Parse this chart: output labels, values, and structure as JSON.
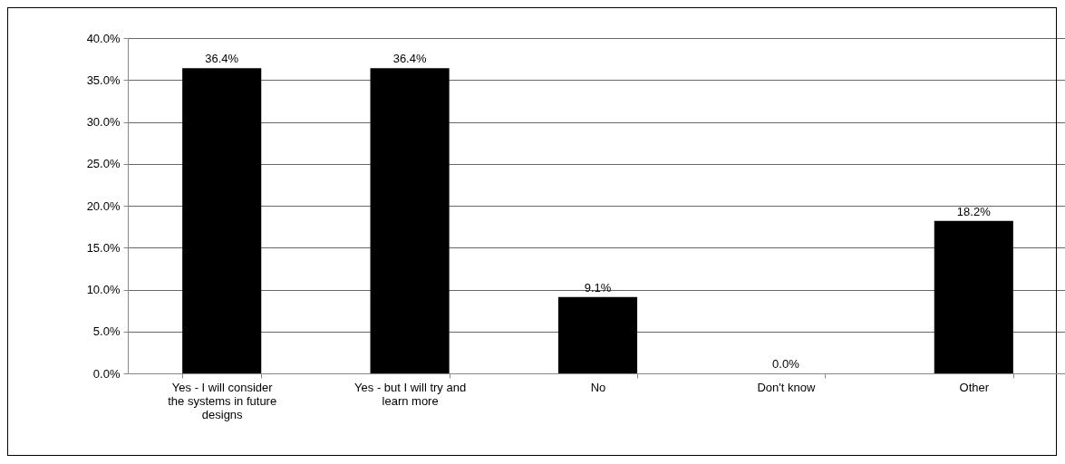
{
  "chart_data": {
    "type": "bar",
    "categories": [
      "Yes - I will consider the systems in future designs",
      "Yes - but I will try and learn more",
      "No",
      "Don't know",
      "Other"
    ],
    "values": [
      36.4,
      36.4,
      9.1,
      0.0,
      18.2
    ],
    "value_labels": [
      "36.4%",
      "36.4%",
      "9.1%",
      "0.0%",
      "18.2%"
    ],
    "color": "#000000",
    "ylim": [
      0,
      40
    ],
    "yticks": [
      {
        "value": 0,
        "label": "0.0%"
      },
      {
        "value": 5,
        "label": "5.0%"
      },
      {
        "value": 10,
        "label": "10.0%"
      },
      {
        "value": 15,
        "label": "15.0%"
      },
      {
        "value": 20,
        "label": "20.0%"
      },
      {
        "value": 25,
        "label": "25.0%"
      },
      {
        "value": 30,
        "label": "30.0%"
      },
      {
        "value": 35,
        "label": "35.0%"
      },
      {
        "value": 40,
        "label": "40.0%"
      }
    ],
    "grid": "y"
  }
}
